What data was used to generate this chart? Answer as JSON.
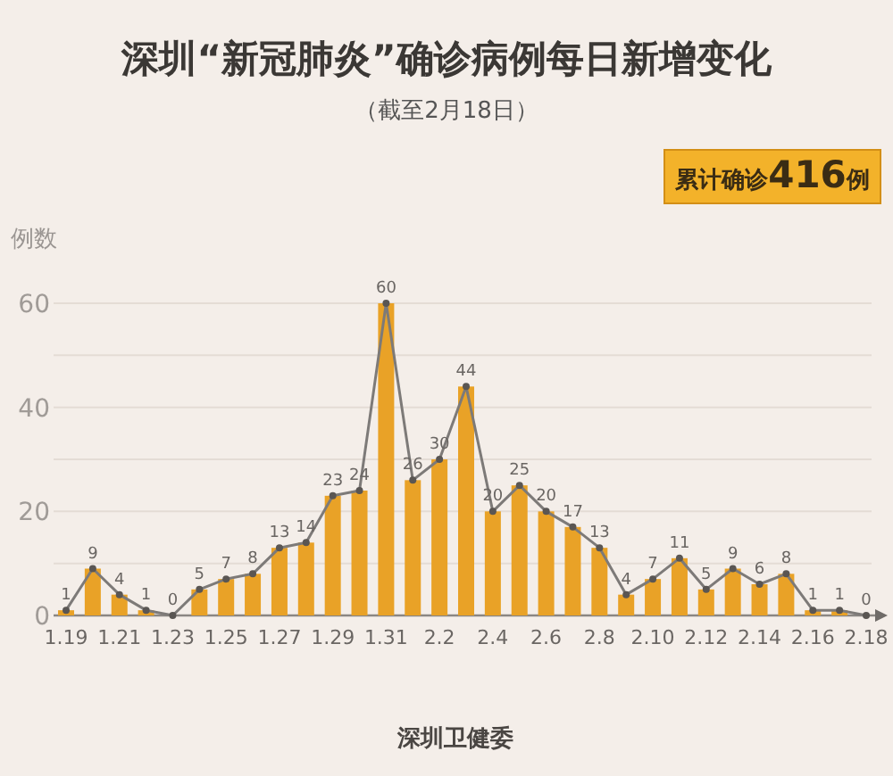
{
  "chart_data": {
    "type": "bar",
    "title": "深圳“新冠肺炎”确诊病例每日新增变化",
    "subtitle": "（截至2月18日）",
    "ylabel": "例数",
    "annotations": [
      "累计确诊416例",
      "深圳卫健委"
    ],
    "categories": [
      "1.19",
      null,
      "1.21",
      null,
      "1.23",
      null,
      "1.25",
      null,
      "1.27",
      null,
      "1.29",
      null,
      "1.31",
      null,
      "2.2",
      null,
      "2.4",
      null,
      "2.6",
      null,
      "2.8",
      null,
      "2.10",
      null,
      "2.12",
      null,
      "2.14",
      null,
      "2.16",
      null,
      "2.18"
    ],
    "series": [
      {
        "color": "#e9a227",
        "values": [
          1,
          9,
          4,
          1,
          0,
          5,
          7,
          8,
          13,
          14,
          23,
          24,
          60,
          26,
          30,
          44,
          20,
          25,
          20,
          17,
          13,
          4,
          7,
          11,
          5,
          9,
          6,
          8,
          1,
          1,
          0
        ],
        "value_labels": [
          "1",
          "9",
          "4",
          "1",
          "0",
          "5",
          "7",
          "8",
          "13",
          "14",
          "23",
          "24",
          "60",
          "26",
          "30",
          "44",
          "20",
          "25",
          "20",
          "17",
          "13",
          "4",
          "7",
          "11",
          "5",
          "9",
          "6",
          "8",
          "1",
          "1",
          "0"
        ]
      },
      {
        "type": "line",
        "color": "#7d7a78",
        "values": [
          1,
          9,
          4,
          1,
          0,
          5,
          7,
          8,
          13,
          14,
          23,
          24,
          60,
          26,
          30,
          44,
          20,
          25,
          20,
          17,
          13,
          4,
          7,
          11,
          5,
          9,
          6,
          8,
          1,
          1,
          0
        ]
      }
    ],
    "ylim": [
      0,
      60
    ],
    "yticks": [
      0,
      {
        "value": 10,
        "label": null
      },
      20,
      {
        "value": 30,
        "label": null
      },
      40,
      {
        "value": 50,
        "label": null
      },
      60
    ],
    "grid": "y",
    "marker": "circle",
    "line_style": "solid"
  }
}
